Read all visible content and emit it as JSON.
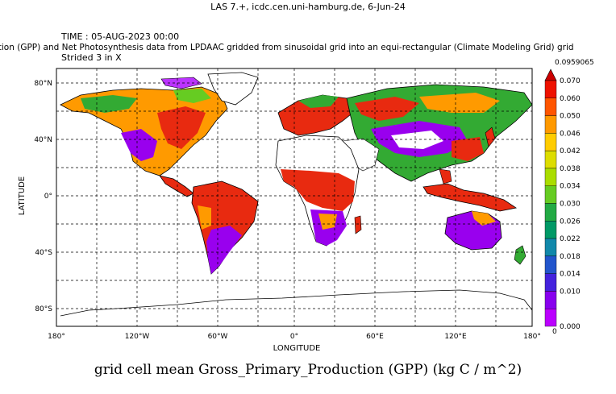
{
  "header": "LAS 7.+, icdc.cen.uni-hamburg.de,  6-Jun-24",
  "time_label": "TIME : 05-AUG-2023 00:00",
  "description": "ction (GPP) and Net Photosynthesis data from LPDAAC gridded from sinusoidal grid into an equi-rectangular (Climate Modeling Grid) grid",
  "stride_label": "Strided 3 in X",
  "bottom_title": "grid cell mean Gross_Primary_Production (GPP) (kg C / m^2)",
  "axes": {
    "ylabel": "LATITUDE",
    "xlabel": "LONGITUDE",
    "lat_ticks": [
      "80°N",
      "40°N",
      "0°",
      "40°S",
      "80°S"
    ],
    "lon_ticks": [
      "180°",
      "120°W",
      "60°W",
      "0°",
      "60°E",
      "120°E",
      "180°"
    ]
  },
  "colorbar": {
    "max_label": "0.0959065",
    "min_label": "0",
    "labels": [
      "0.070",
      "0.060",
      "0.050",
      "0.046",
      "0.042",
      "0.038",
      "0.034",
      "0.030",
      "0.026",
      "0.022",
      "0.018",
      "0.014",
      "0.010",
      "0.000"
    ],
    "colors": [
      "#cc0000",
      "#ee1100",
      "#ff5500",
      "#ff9900",
      "#ffcc00",
      "#dddd00",
      "#aadd00",
      "#66cc22",
      "#22aa44",
      "#009966",
      "#1188aa",
      "#2255cc",
      "#4422dd",
      "#8800ee",
      "#bb00ff"
    ]
  },
  "colors": {
    "high": "#e82a10",
    "mid": "#ff9a00",
    "green": "#33aa33",
    "low": "#9900ee",
    "zero": "#bb33ff"
  }
}
